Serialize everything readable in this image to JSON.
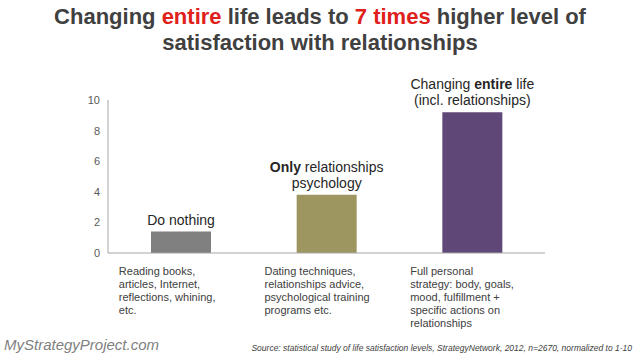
{
  "chart_data": {
    "type": "bar",
    "title": "Changing entire life leads to 7 times higher level of satisfaction with relationships",
    "title_emphasis": [
      "entire",
      "7 times"
    ],
    "categories": [
      "Reading books, articles, Internet, reflections, whining, etc.",
      "Dating techniques, relationships advice, psychological training programs etc.",
      "Full personal strategy: body, goals, mood, fulfillment + specific actions on relationships"
    ],
    "values": [
      1.4,
      3.8,
      9.2
    ],
    "annotations": [
      "Do nothing",
      "Only relationships psychology",
      "Changing entire life (incl. relationships)"
    ],
    "annotation_emphasis": [
      null,
      "Only",
      "entire"
    ],
    "colors": [
      "#808080",
      "#9e9660",
      "#5f4777"
    ],
    "ylim": [
      0,
      10
    ],
    "yticks": [
      0,
      2,
      4,
      6,
      8,
      10
    ],
    "grid": false,
    "data_labels": false,
    "footer": "MyStrategyProject.com",
    "source": "Source: statistical study of life satisfaction levels, StrategyNetwork, 2012, n=2670, normalized to 1-10"
  }
}
